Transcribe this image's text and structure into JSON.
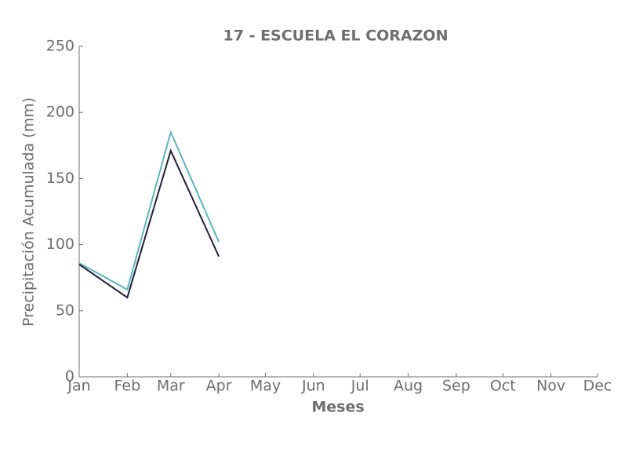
{
  "chart_data": {
    "type": "line",
    "title": "17 - ESCUELA EL CORAZON",
    "x_label": "Meses",
    "y_label": "Precipitación Acumulada (mm)",
    "categories": [
      "Jan",
      "Feb",
      "Mar",
      "Apr",
      "May",
      "Jun",
      "Jul",
      "Aug",
      "Sep",
      "Oct",
      "Nov",
      "Dec"
    ],
    "series": [
      {
        "color": "#5ab4c0",
        "values": [
          86,
          66,
          185,
          102,
          null,
          null,
          null,
          null,
          null,
          null,
          null,
          null
        ]
      },
      {
        "color": "#1f1f3a",
        "values": [
          85,
          60,
          171,
          91,
          null,
          null,
          null,
          null,
          null,
          null,
          null,
          null
        ]
      }
    ],
    "ylim": [
      0,
      250
    ],
    "yticks": [
      0,
      50,
      100,
      150,
      200,
      250
    ],
    "grid": false
  }
}
